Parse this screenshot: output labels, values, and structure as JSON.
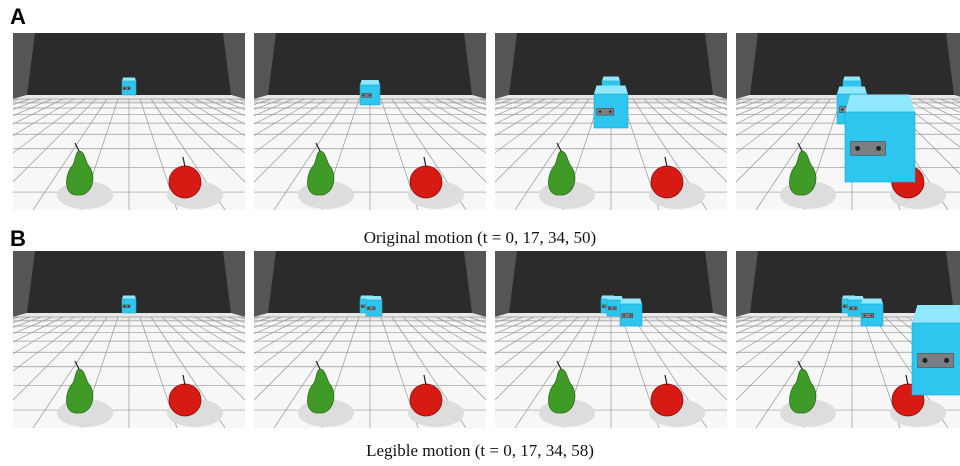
{
  "panels": [
    {
      "label": "A",
      "caption": "Original motion (t = 0, 17, 34, 50)"
    },
    {
      "label": "B",
      "caption": "Legible motion (t = 0, 17, 34, 58)"
    }
  ]
}
